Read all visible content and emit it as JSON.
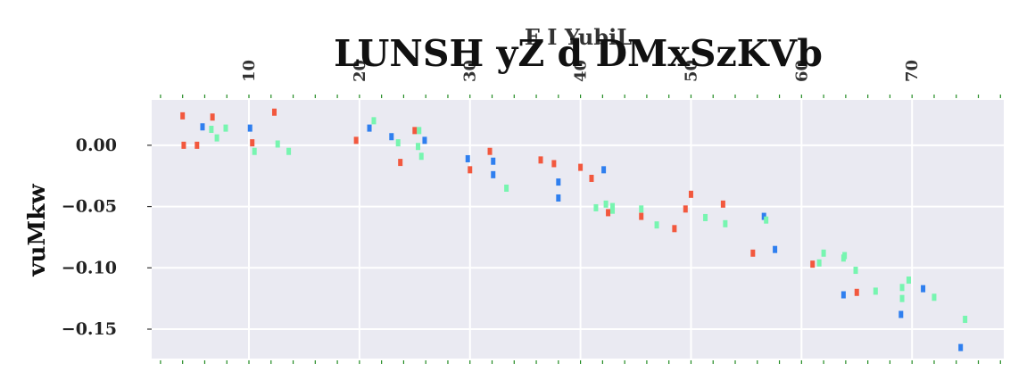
{
  "chart_data": {
    "type": "scatter",
    "title": "LUNSH yZ  d  DMxSzKVb",
    "xlabel": "F I YubiL",
    "ylabel": "vuMkw",
    "xlim": [
      1.2,
      78.3
    ],
    "ylim": [
      -0.174,
      0.037
    ],
    "x_ticks": [
      10,
      20,
      30,
      40,
      50,
      60,
      70
    ],
    "y_ticks": [
      0.0,
      -0.05,
      -0.1,
      -0.15
    ],
    "y_tick_labels": [
      "0.00",
      "−0.05",
      "−0.10",
      "−0.15"
    ],
    "x_axis_position": "top",
    "grid": true,
    "background": "#eaeaf2",
    "colors": {
      "red": "#f2583e",
      "blue": "#2f7fef",
      "green": "#77f5b0",
      "minor_tick": "#228b22"
    },
    "series": [
      {
        "color": "#f2583e",
        "points": [
          [
            4.0,
            0.024
          ],
          [
            4.1,
            0.0
          ],
          [
            5.3,
            0.0
          ],
          [
            6.7,
            0.023
          ],
          [
            10.3,
            0.002
          ],
          [
            12.3,
            0.027
          ],
          [
            19.7,
            0.004
          ],
          [
            23.7,
            -0.014
          ],
          [
            25.0,
            0.012
          ],
          [
            30.0,
            -0.02
          ],
          [
            31.8,
            -0.005
          ],
          [
            36.4,
            -0.012
          ],
          [
            37.6,
            -0.015
          ],
          [
            40.0,
            -0.018
          ],
          [
            41.0,
            -0.027
          ],
          [
            42.5,
            -0.055
          ],
          [
            45.5,
            -0.058
          ],
          [
            48.5,
            -0.068
          ],
          [
            49.5,
            -0.052
          ],
          [
            50.0,
            -0.04
          ],
          [
            52.9,
            -0.048
          ],
          [
            55.6,
            -0.088
          ],
          [
            61.0,
            -0.097
          ],
          [
            65.0,
            -0.12
          ]
        ]
      },
      {
        "color": "#2f7fef",
        "points": [
          [
            5.8,
            0.015
          ],
          [
            10.1,
            0.014
          ],
          [
            20.9,
            0.014
          ],
          [
            22.9,
            0.007
          ],
          [
            25.9,
            0.004
          ],
          [
            29.8,
            -0.011
          ],
          [
            32.1,
            -0.013
          ],
          [
            32.1,
            -0.024
          ],
          [
            38.0,
            -0.03
          ],
          [
            38.0,
            -0.043
          ],
          [
            42.1,
            -0.02
          ],
          [
            56.6,
            -0.058
          ],
          [
            57.6,
            -0.085
          ],
          [
            63.8,
            -0.122
          ],
          [
            69.0,
            -0.138
          ],
          [
            71.0,
            -0.117
          ],
          [
            74.4,
            -0.165
          ]
        ]
      },
      {
        "color": "#77f5b0",
        "points": [
          [
            6.6,
            0.013
          ],
          [
            7.1,
            0.006
          ],
          [
            7.9,
            0.014
          ],
          [
            10.5,
            -0.005
          ],
          [
            12.6,
            0.001
          ],
          [
            13.6,
            -0.005
          ],
          [
            21.3,
            0.02
          ],
          [
            23.5,
            0.002
          ],
          [
            25.3,
            -0.001
          ],
          [
            25.4,
            0.012
          ],
          [
            25.6,
            -0.009
          ],
          [
            33.3,
            -0.035
          ],
          [
            41.4,
            -0.051
          ],
          [
            42.3,
            -0.048
          ],
          [
            42.9,
            -0.05
          ],
          [
            42.9,
            -0.053
          ],
          [
            45.5,
            -0.052
          ],
          [
            46.9,
            -0.065
          ],
          [
            51.3,
            -0.059
          ],
          [
            53.1,
            -0.064
          ],
          [
            56.8,
            -0.061
          ],
          [
            61.6,
            -0.096
          ],
          [
            62.0,
            -0.088
          ],
          [
            63.8,
            -0.092
          ],
          [
            63.9,
            -0.09
          ],
          [
            64.9,
            -0.102
          ],
          [
            66.7,
            -0.119
          ],
          [
            69.1,
            -0.116
          ],
          [
            69.1,
            -0.125
          ],
          [
            69.7,
            -0.11
          ],
          [
            72.0,
            -0.124
          ],
          [
            74.8,
            -0.142
          ]
        ]
      }
    ]
  }
}
